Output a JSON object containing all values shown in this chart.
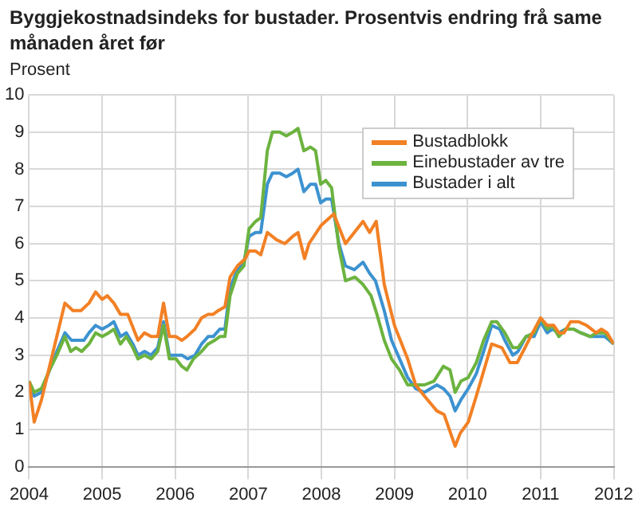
{
  "chart_data": {
    "type": "line",
    "title": "Byggjekostnadsindeks for bustader. Prosentvis endring frå same månaden året før",
    "ylabel": "Prosent",
    "xlim": [
      2004,
      2012
    ],
    "xticks": [
      2004,
      2005,
      2006,
      2007,
      2008,
      2009,
      2010,
      2011,
      2012
    ],
    "ylim": [
      0,
      10
    ],
    "yticks": [
      0,
      1,
      2,
      3,
      4,
      5,
      6,
      7,
      8,
      9,
      10
    ],
    "grid": true,
    "legend": "top right",
    "marker": "none",
    "line_style": "solid",
    "series": [
      {
        "name": "Bustadblokk",
        "color": "#f28024",
        "x": [
          2004.0,
          2004.07,
          2004.17,
          2004.28,
          2004.49,
          2004.6,
          2004.71,
          2004.82,
          2004.91,
          2005.0,
          2005.07,
          2005.16,
          2005.25,
          2005.35,
          2005.49,
          2005.58,
          2005.67,
          2005.76,
          2005.84,
          2005.92,
          2006.01,
          2006.09,
          2006.16,
          2006.27,
          2006.36,
          2006.45,
          2006.52,
          2006.59,
          2006.68,
          2006.75,
          2006.85,
          2006.96,
          2007.01,
          2007.1,
          2007.17,
          2007.26,
          2007.39,
          2007.5,
          2007.61,
          2007.68,
          2007.77,
          2007.83,
          2008.0,
          2008.17,
          2008.33,
          2008.57,
          2008.66,
          2008.75,
          2008.86,
          2009.0,
          2009.18,
          2009.29,
          2009.41,
          2009.58,
          2009.68,
          2009.83,
          2009.9,
          2010.01,
          2010.12,
          2010.24,
          2010.33,
          2010.47,
          2010.58,
          2010.68,
          2010.76,
          2010.89,
          2011.0,
          2011.09,
          2011.18,
          2011.25,
          2011.32,
          2011.41,
          2011.52,
          2011.63,
          2011.76,
          2011.83,
          2011.91,
          2012.0
        ],
        "values": [
          2.3,
          1.2,
          1.8,
          2.7,
          4.4,
          4.2,
          4.2,
          4.4,
          4.7,
          4.5,
          4.6,
          4.4,
          4.1,
          4.1,
          3.4,
          3.6,
          3.5,
          3.5,
          4.4,
          3.5,
          3.5,
          3.4,
          3.5,
          3.7,
          4.0,
          4.1,
          4.1,
          4.2,
          4.3,
          5.1,
          5.4,
          5.6,
          5.8,
          5.8,
          5.7,
          6.3,
          6.1,
          6.0,
          6.2,
          6.3,
          5.6,
          6.0,
          6.5,
          6.8,
          6.0,
          6.6,
          6.3,
          6.6,
          4.9,
          3.8,
          2.9,
          2.2,
          1.9,
          1.5,
          1.4,
          0.55,
          0.9,
          1.2,
          1.9,
          2.7,
          3.3,
          3.2,
          2.8,
          2.8,
          3.1,
          3.6,
          4.0,
          3.8,
          3.8,
          3.6,
          3.6,
          3.9,
          3.9,
          3.8,
          3.6,
          3.7,
          3.6,
          3.3
        ]
      },
      {
        "name": "Einebustader av tre",
        "color": "#6cb33f",
        "x": [
          2004.0,
          2004.07,
          2004.17,
          2004.28,
          2004.38,
          2004.49,
          2004.57,
          2004.64,
          2004.72,
          2004.82,
          2004.91,
          2005.0,
          2005.09,
          2005.16,
          2005.25,
          2005.33,
          2005.42,
          2005.49,
          2005.58,
          2005.67,
          2005.76,
          2005.84,
          2005.92,
          2006.01,
          2006.09,
          2006.16,
          2006.25,
          2006.36,
          2006.45,
          2006.54,
          2006.61,
          2006.68,
          2006.75,
          2006.85,
          2006.94,
          2007.01,
          2007.1,
          2007.17,
          2007.26,
          2007.33,
          2007.43,
          2007.52,
          2007.61,
          2007.68,
          2007.76,
          2007.85,
          2007.92,
          2007.99,
          2008.06,
          2008.14,
          2008.24,
          2008.33,
          2008.46,
          2008.57,
          2008.68,
          2008.76,
          2008.86,
          2008.96,
          2009.07,
          2009.18,
          2009.29,
          2009.41,
          2009.54,
          2009.67,
          2009.76,
          2009.83,
          2009.91,
          2010.01,
          2010.12,
          2010.22,
          2010.33,
          2010.4,
          2010.51,
          2010.62,
          2010.69,
          2010.8,
          2010.91,
          2011.0,
          2011.09,
          2011.16,
          2011.25,
          2011.34,
          2011.45,
          2011.55,
          2011.68,
          2011.77,
          2011.88,
          2012.0
        ],
        "values": [
          2.3,
          2.0,
          2.1,
          2.6,
          3.0,
          3.5,
          3.1,
          3.2,
          3.1,
          3.3,
          3.6,
          3.5,
          3.6,
          3.7,
          3.3,
          3.5,
          3.2,
          2.9,
          3.0,
          2.9,
          3.1,
          3.8,
          2.9,
          2.9,
          2.7,
          2.6,
          2.9,
          3.1,
          3.3,
          3.4,
          3.5,
          3.5,
          4.6,
          5.2,
          5.4,
          6.4,
          6.6,
          6.7,
          8.5,
          9.0,
          9.0,
          8.9,
          9.0,
          9.1,
          8.5,
          8.6,
          8.5,
          7.6,
          7.7,
          7.5,
          5.9,
          5.0,
          5.1,
          4.9,
          4.6,
          4.1,
          3.4,
          2.9,
          2.6,
          2.2,
          2.2,
          2.2,
          2.3,
          2.7,
          2.6,
          2.0,
          2.3,
          2.4,
          2.8,
          3.4,
          3.9,
          3.9,
          3.6,
          3.2,
          3.2,
          3.5,
          3.6,
          4.0,
          3.7,
          3.8,
          3.5,
          3.7,
          3.7,
          3.6,
          3.5,
          3.6,
          3.6,
          3.3
        ]
      },
      {
        "name": "Bustader i alt",
        "color": "#3c92d0",
        "x": [
          2004.0,
          2004.07,
          2004.17,
          2004.28,
          2004.38,
          2004.49,
          2004.58,
          2004.67,
          2004.75,
          2004.82,
          2004.91,
          2005.0,
          2005.09,
          2005.16,
          2005.25,
          2005.33,
          2005.42,
          2005.49,
          2005.58,
          2005.67,
          2005.76,
          2005.84,
          2005.92,
          2006.01,
          2006.09,
          2006.17,
          2006.27,
          2006.36,
          2006.45,
          2006.52,
          2006.61,
          2006.68,
          2006.75,
          2006.85,
          2006.94,
          2007.01,
          2007.1,
          2007.17,
          2007.26,
          2007.33,
          2007.43,
          2007.52,
          2007.61,
          2007.68,
          2007.76,
          2007.85,
          2007.92,
          2007.99,
          2008.06,
          2008.14,
          2008.24,
          2008.33,
          2008.45,
          2008.57,
          2008.66,
          2008.74,
          2008.86,
          2008.96,
          2009.07,
          2009.18,
          2009.29,
          2009.41,
          2009.58,
          2009.67,
          2009.76,
          2009.83,
          2009.91,
          2010.01,
          2010.12,
          2010.22,
          2010.33,
          2010.44,
          2010.51,
          2010.62,
          2010.69,
          2010.8,
          2010.91,
          2011.0,
          2011.09,
          2011.16,
          2011.25,
          2011.34,
          2011.45,
          2011.55,
          2011.68,
          2011.77,
          2011.88,
          2012.0
        ],
        "values": [
          2.3,
          1.9,
          2.0,
          2.6,
          3.1,
          3.6,
          3.4,
          3.4,
          3.4,
          3.6,
          3.8,
          3.7,
          3.8,
          3.9,
          3.5,
          3.6,
          3.3,
          3.0,
          3.1,
          3.0,
          3.2,
          3.9,
          3.0,
          3.0,
          3.0,
          2.9,
          3.0,
          3.3,
          3.5,
          3.5,
          3.7,
          3.7,
          4.8,
          5.3,
          5.5,
          6.2,
          6.3,
          6.3,
          7.6,
          7.9,
          7.9,
          7.8,
          7.9,
          8.0,
          7.4,
          7.6,
          7.6,
          7.1,
          7.2,
          7.2,
          6.0,
          5.4,
          5.3,
          5.5,
          5.2,
          5.0,
          4.2,
          3.4,
          2.9,
          2.4,
          2.1,
          2.0,
          2.2,
          2.1,
          1.9,
          1.5,
          1.8,
          2.1,
          2.5,
          3.1,
          3.8,
          3.7,
          3.4,
          3.0,
          3.1,
          3.5,
          3.5,
          3.9,
          3.6,
          3.7,
          3.6,
          3.7,
          3.7,
          3.6,
          3.5,
          3.5,
          3.5,
          3.3
        ]
      }
    ]
  }
}
